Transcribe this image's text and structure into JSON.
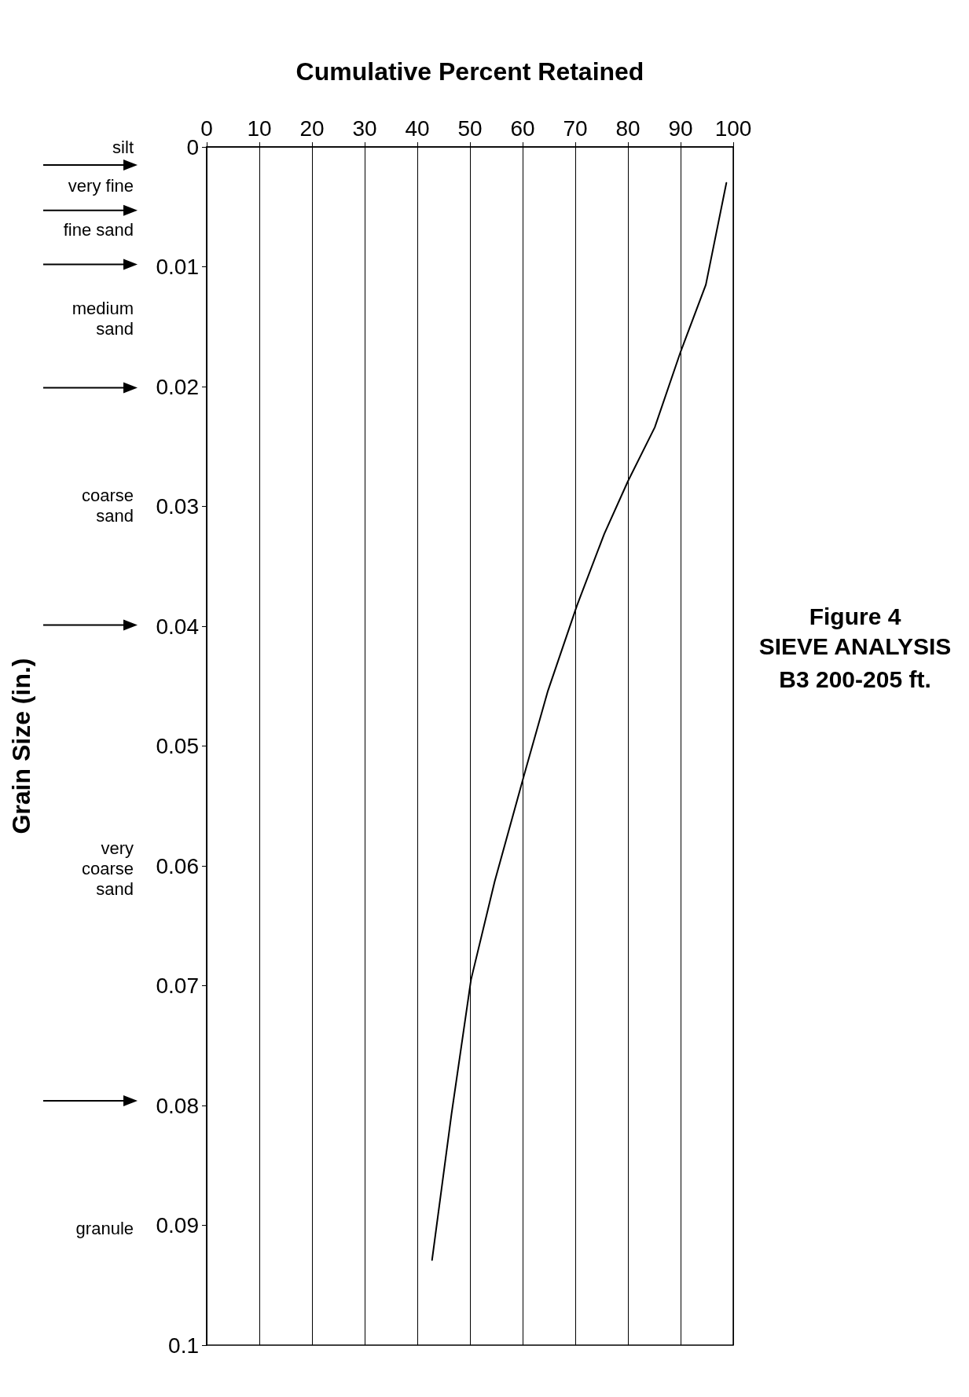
{
  "chart_data": {
    "type": "line",
    "title": "Figure 4\nSIEVE ANALYSIS",
    "subtitle": "B3 200-205 ft.",
    "xlabel": "Cumulative Percent Retained",
    "ylabel": "Grain Size (in.)",
    "x": [
      98.7,
      94.8,
      90.0,
      85.1,
      80.0,
      75.5,
      70.3,
      64.8,
      60.3,
      54.7,
      50.2,
      46.5,
      42.8
    ],
    "series": [
      {
        "color": "#000000",
        "values": [
          0.003,
          0.0115,
          0.0171,
          0.0234,
          0.0279,
          0.0323,
          0.0383,
          0.0454,
          0.0524,
          0.0613,
          0.0695,
          0.0807,
          0.0929
        ]
      }
    ],
    "xlim": [
      0,
      100
    ],
    "xticks": [
      0,
      10,
      20,
      30,
      40,
      50,
      60,
      70,
      80,
      90,
      100
    ],
    "ylim": [
      0.1,
      0
    ],
    "yticks": [
      0,
      0.01,
      0.02,
      0.03,
      0.04,
      0.05,
      0.06,
      0.07,
      0.08,
      0.09,
      0.1
    ],
    "grid": "x",
    "marker": "none",
    "line_style": "solid",
    "annotations": [
      "silt",
      "very fine",
      "fine sand",
      "medium\nsand",
      "coarse\nsand",
      "very\ncoarse\nsand",
      "granule"
    ]
  }
}
